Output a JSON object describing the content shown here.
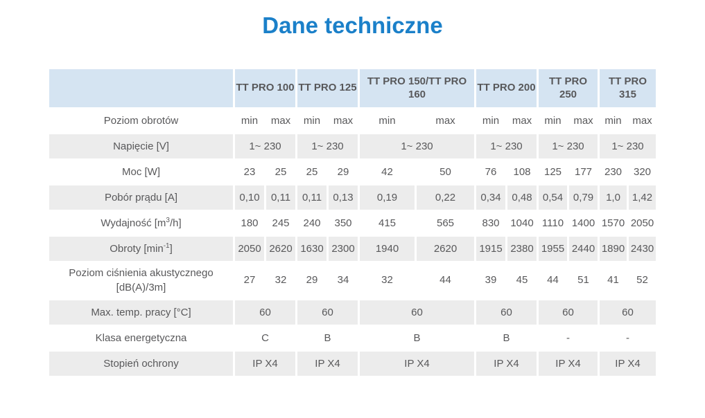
{
  "page": {
    "title": "Dane techniczne"
  },
  "colors": {
    "title": "#1b80c9",
    "header_bg": "#d5e4f2",
    "zebra_bg": "#ececec",
    "text": "#58585a"
  },
  "table": {
    "models": [
      "TT PRO 100",
      "TT PRO 125",
      "TT PRO 150/TT PRO 160",
      "TT PRO 200",
      "TT PRO 250",
      "TT PRO 315"
    ],
    "rows": [
      {
        "label": "Poziom obrotów",
        "type": "pair",
        "values": [
          [
            "min",
            "max"
          ],
          [
            "min",
            "max"
          ],
          [
            "min",
            "max"
          ],
          [
            "min",
            "max"
          ],
          [
            "min",
            "max"
          ],
          [
            "min",
            "max"
          ]
        ]
      },
      {
        "label": "Napięcie [V]",
        "type": "span",
        "values": [
          "1~ 230",
          "1~ 230",
          "1~ 230",
          "1~ 230",
          "1~ 230",
          "1~ 230"
        ]
      },
      {
        "label": "Moc [W]",
        "type": "pair",
        "values": [
          [
            "23",
            "25"
          ],
          [
            "25",
            "29"
          ],
          [
            "42",
            "50"
          ],
          [
            "76",
            "108"
          ],
          [
            "125",
            "177"
          ],
          [
            "230",
            "320"
          ]
        ]
      },
      {
        "label": "Pobór prądu [A]",
        "type": "pair",
        "values": [
          [
            "0,10",
            "0,11"
          ],
          [
            "0,11",
            "0,13"
          ],
          [
            "0,19",
            "0,22"
          ],
          [
            "0,34",
            "0,48"
          ],
          [
            "0,54",
            "0,79"
          ],
          [
            "1,0",
            "1,42"
          ]
        ]
      },
      {
        "label": "Wydajność [m3/h]",
        "label_parts": [
          {
            "t": "Wydajność [m"
          },
          {
            "t": "3",
            "sup": true
          },
          {
            "t": "/h]"
          }
        ],
        "type": "pair",
        "values": [
          [
            "180",
            "245"
          ],
          [
            "240",
            "350"
          ],
          [
            "415",
            "565"
          ],
          [
            "830",
            "1040"
          ],
          [
            "1110",
            "1400"
          ],
          [
            "1570",
            "2050"
          ]
        ]
      },
      {
        "label": "Obroty [min-1]",
        "label_parts": [
          {
            "t": "Obroty [min"
          },
          {
            "t": "-1",
            "sup": true
          },
          {
            "t": "]"
          }
        ],
        "type": "pair",
        "values": [
          [
            "2050",
            "2620"
          ],
          [
            "1630",
            "2300"
          ],
          [
            "1940",
            "2620"
          ],
          [
            "1915",
            "2380"
          ],
          [
            "1955",
            "2440"
          ],
          [
            "1890",
            "2430"
          ]
        ]
      },
      {
        "label": "Poziom ciśnienia akustycznego [dB(A)/3m]",
        "tall": true,
        "type": "pair",
        "values": [
          [
            "27",
            "32"
          ],
          [
            "29",
            "34"
          ],
          [
            "32",
            "44"
          ],
          [
            "39",
            "45"
          ],
          [
            "44",
            "51"
          ],
          [
            "41",
            "52"
          ]
        ]
      },
      {
        "label": "Max. temp. pracy [°C]",
        "type": "span",
        "values": [
          "60",
          "60",
          "60",
          "60",
          "60",
          "60"
        ]
      },
      {
        "label": "Klasa energetyczna",
        "type": "span",
        "values": [
          "C",
          "B",
          "B",
          "B",
          "-",
          "-"
        ]
      },
      {
        "label": "Stopień ochrony",
        "type": "span",
        "values": [
          "IP X4",
          "IP X4",
          "IP X4",
          "IP X4",
          "IP X4",
          "IP X4"
        ]
      }
    ]
  }
}
